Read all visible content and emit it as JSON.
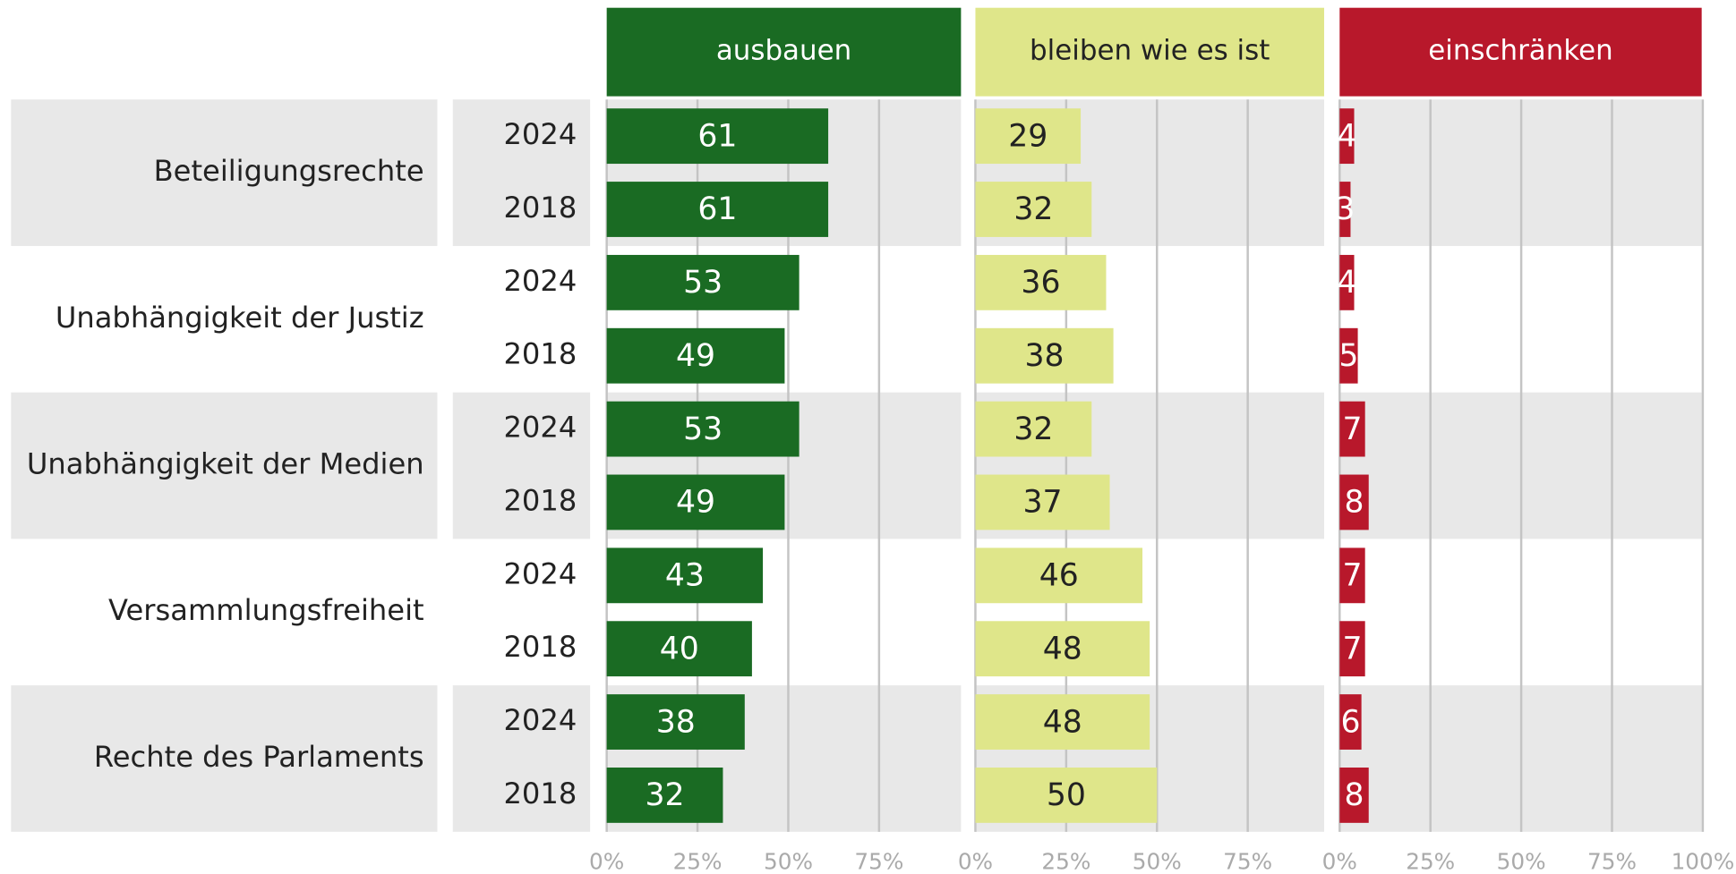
{
  "chart_data": {
    "type": "bar",
    "groups": [
      "Beteiligungsrechte",
      "Unabhängigkeit der Justiz",
      "Unabhängigkeit der Medien",
      "Versammlungsfreiheit",
      "Rechte des Parlaments"
    ],
    "categories": [
      "2024",
      "2018",
      "2024",
      "2018",
      "2024",
      "2018",
      "2024",
      "2018",
      "2024",
      "2018"
    ],
    "xlim": [
      0,
      100
    ],
    "grid": true,
    "series": [
      {
        "name": "ausbauen",
        "color": "#1a6b23",
        "label_color": "#ffffff",
        "values": [
          61,
          61,
          53,
          49,
          53,
          49,
          43,
          40,
          38,
          32
        ],
        "xticks": [
          {
            "value": 0,
            "label": "0%"
          },
          {
            "value": 25,
            "label": "25%"
          },
          {
            "value": 50,
            "label": "50%"
          },
          {
            "value": 75,
            "label": "75%"
          }
        ]
      },
      {
        "name": "bleiben wie es ist",
        "color": "#dfe68a",
        "label_color": "#222222",
        "values": [
          29,
          32,
          36,
          38,
          32,
          37,
          46,
          48,
          48,
          50
        ],
        "xticks": [
          {
            "value": 0,
            "label": "0%"
          },
          {
            "value": 25,
            "label": "25%"
          },
          {
            "value": 50,
            "label": "50%"
          },
          {
            "value": 75,
            "label": "75%"
          }
        ]
      },
      {
        "name": "einschränken",
        "color": "#b8182b",
        "label_color": "#ffffff",
        "values": [
          4,
          3,
          4,
          5,
          7,
          8,
          7,
          7,
          6,
          8
        ],
        "xticks": [
          {
            "value": 0,
            "label": "0%"
          },
          {
            "value": 25,
            "label": "25%"
          },
          {
            "value": 50,
            "label": "50%"
          },
          {
            "value": 75,
            "label": "75%"
          },
          {
            "value": 100,
            "label": "100%"
          }
        ]
      }
    ]
  }
}
